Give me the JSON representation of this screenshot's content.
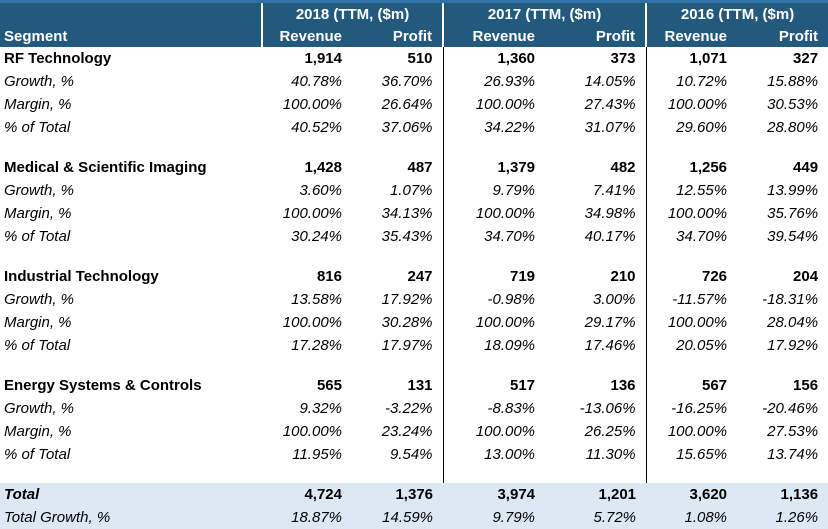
{
  "chart_data": {
    "type": "table",
    "segment_header": "Segment",
    "year_groups": [
      {
        "label": "2018 (TTM, ($m)",
        "columns": [
          "Revenue",
          "Profit"
        ]
      },
      {
        "label": "2017 (TTM, ($m)",
        "columns": [
          "Revenue",
          "Profit"
        ]
      },
      {
        "label": "2016 (TTM, ($m)",
        "columns": [
          "Revenue",
          "Profit"
        ]
      }
    ],
    "sections": [
      {
        "name": "RF Technology",
        "values": [
          "1,914",
          "510",
          "1,360",
          "373",
          "1,071",
          "327"
        ],
        "rows": [
          {
            "label": "Growth, %",
            "values": [
              "40.78%",
              "36.70%",
              "26.93%",
              "14.05%",
              "10.72%",
              "15.88%"
            ]
          },
          {
            "label": "Margin, %",
            "values": [
              "100.00%",
              "26.64%",
              "100.00%",
              "27.43%",
              "100.00%",
              "30.53%"
            ]
          },
          {
            "label": "% of Total",
            "values": [
              "40.52%",
              "37.06%",
              "34.22%",
              "31.07%",
              "29.60%",
              "28.80%"
            ]
          }
        ]
      },
      {
        "name": "Medical & Scientific Imaging",
        "values": [
          "1,428",
          "487",
          "1,379",
          "482",
          "1,256",
          "449"
        ],
        "rows": [
          {
            "label": "Growth, %",
            "values": [
              "3.60%",
              "1.07%",
              "9.79%",
              "7.41%",
              "12.55%",
              "13.99%"
            ]
          },
          {
            "label": "Margin, %",
            "values": [
              "100.00%",
              "34.13%",
              "100.00%",
              "34.98%",
              "100.00%",
              "35.76%"
            ]
          },
          {
            "label": "% of Total",
            "values": [
              "30.24%",
              "35.43%",
              "34.70%",
              "40.17%",
              "34.70%",
              "39.54%"
            ]
          }
        ]
      },
      {
        "name": "Industrial Technology",
        "values": [
          "816",
          "247",
          "719",
          "210",
          "726",
          "204"
        ],
        "rows": [
          {
            "label": "Growth, %",
            "values": [
              "13.58%",
              "17.92%",
              "-0.98%",
              "3.00%",
              "-11.57%",
              "-18.31%"
            ]
          },
          {
            "label": "Margin, %",
            "values": [
              "100.00%",
              "30.28%",
              "100.00%",
              "29.17%",
              "100.00%",
              "28.04%"
            ]
          },
          {
            "label": "% of Total",
            "values": [
              "17.28%",
              "17.97%",
              "18.09%",
              "17.46%",
              "20.05%",
              "17.92%"
            ]
          }
        ]
      },
      {
        "name": "Energy Systems & Controls",
        "values": [
          "565",
          "131",
          "517",
          "136",
          "567",
          "156"
        ],
        "rows": [
          {
            "label": "Growth, %",
            "values": [
              "9.32%",
              "-3.22%",
              "-8.83%",
              "-13.06%",
              "-16.25%",
              "-20.46%"
            ]
          },
          {
            "label": "Margin, %",
            "values": [
              "100.00%",
              "23.24%",
              "100.00%",
              "26.25%",
              "100.00%",
              "27.53%"
            ]
          },
          {
            "label": "% of Total",
            "values": [
              "11.95%",
              "9.54%",
              "13.00%",
              "11.30%",
              "15.65%",
              "13.74%"
            ]
          }
        ]
      }
    ],
    "total_row": {
      "label": "Total",
      "values": [
        "4,724",
        "1,376",
        "3,974",
        "1,201",
        "3,620",
        "1,136"
      ]
    },
    "total_growth_row": {
      "label": "Total Growth, %",
      "values": [
        "18.87%",
        "14.59%",
        "9.79%",
        "5.72%",
        "1.08%",
        "1.26%"
      ]
    }
  },
  "colors": {
    "header_bg": "#24597E",
    "header_top_stripe": "#2E73A6",
    "total_row_bg": "#DCE9F5",
    "divider": "#000000"
  }
}
